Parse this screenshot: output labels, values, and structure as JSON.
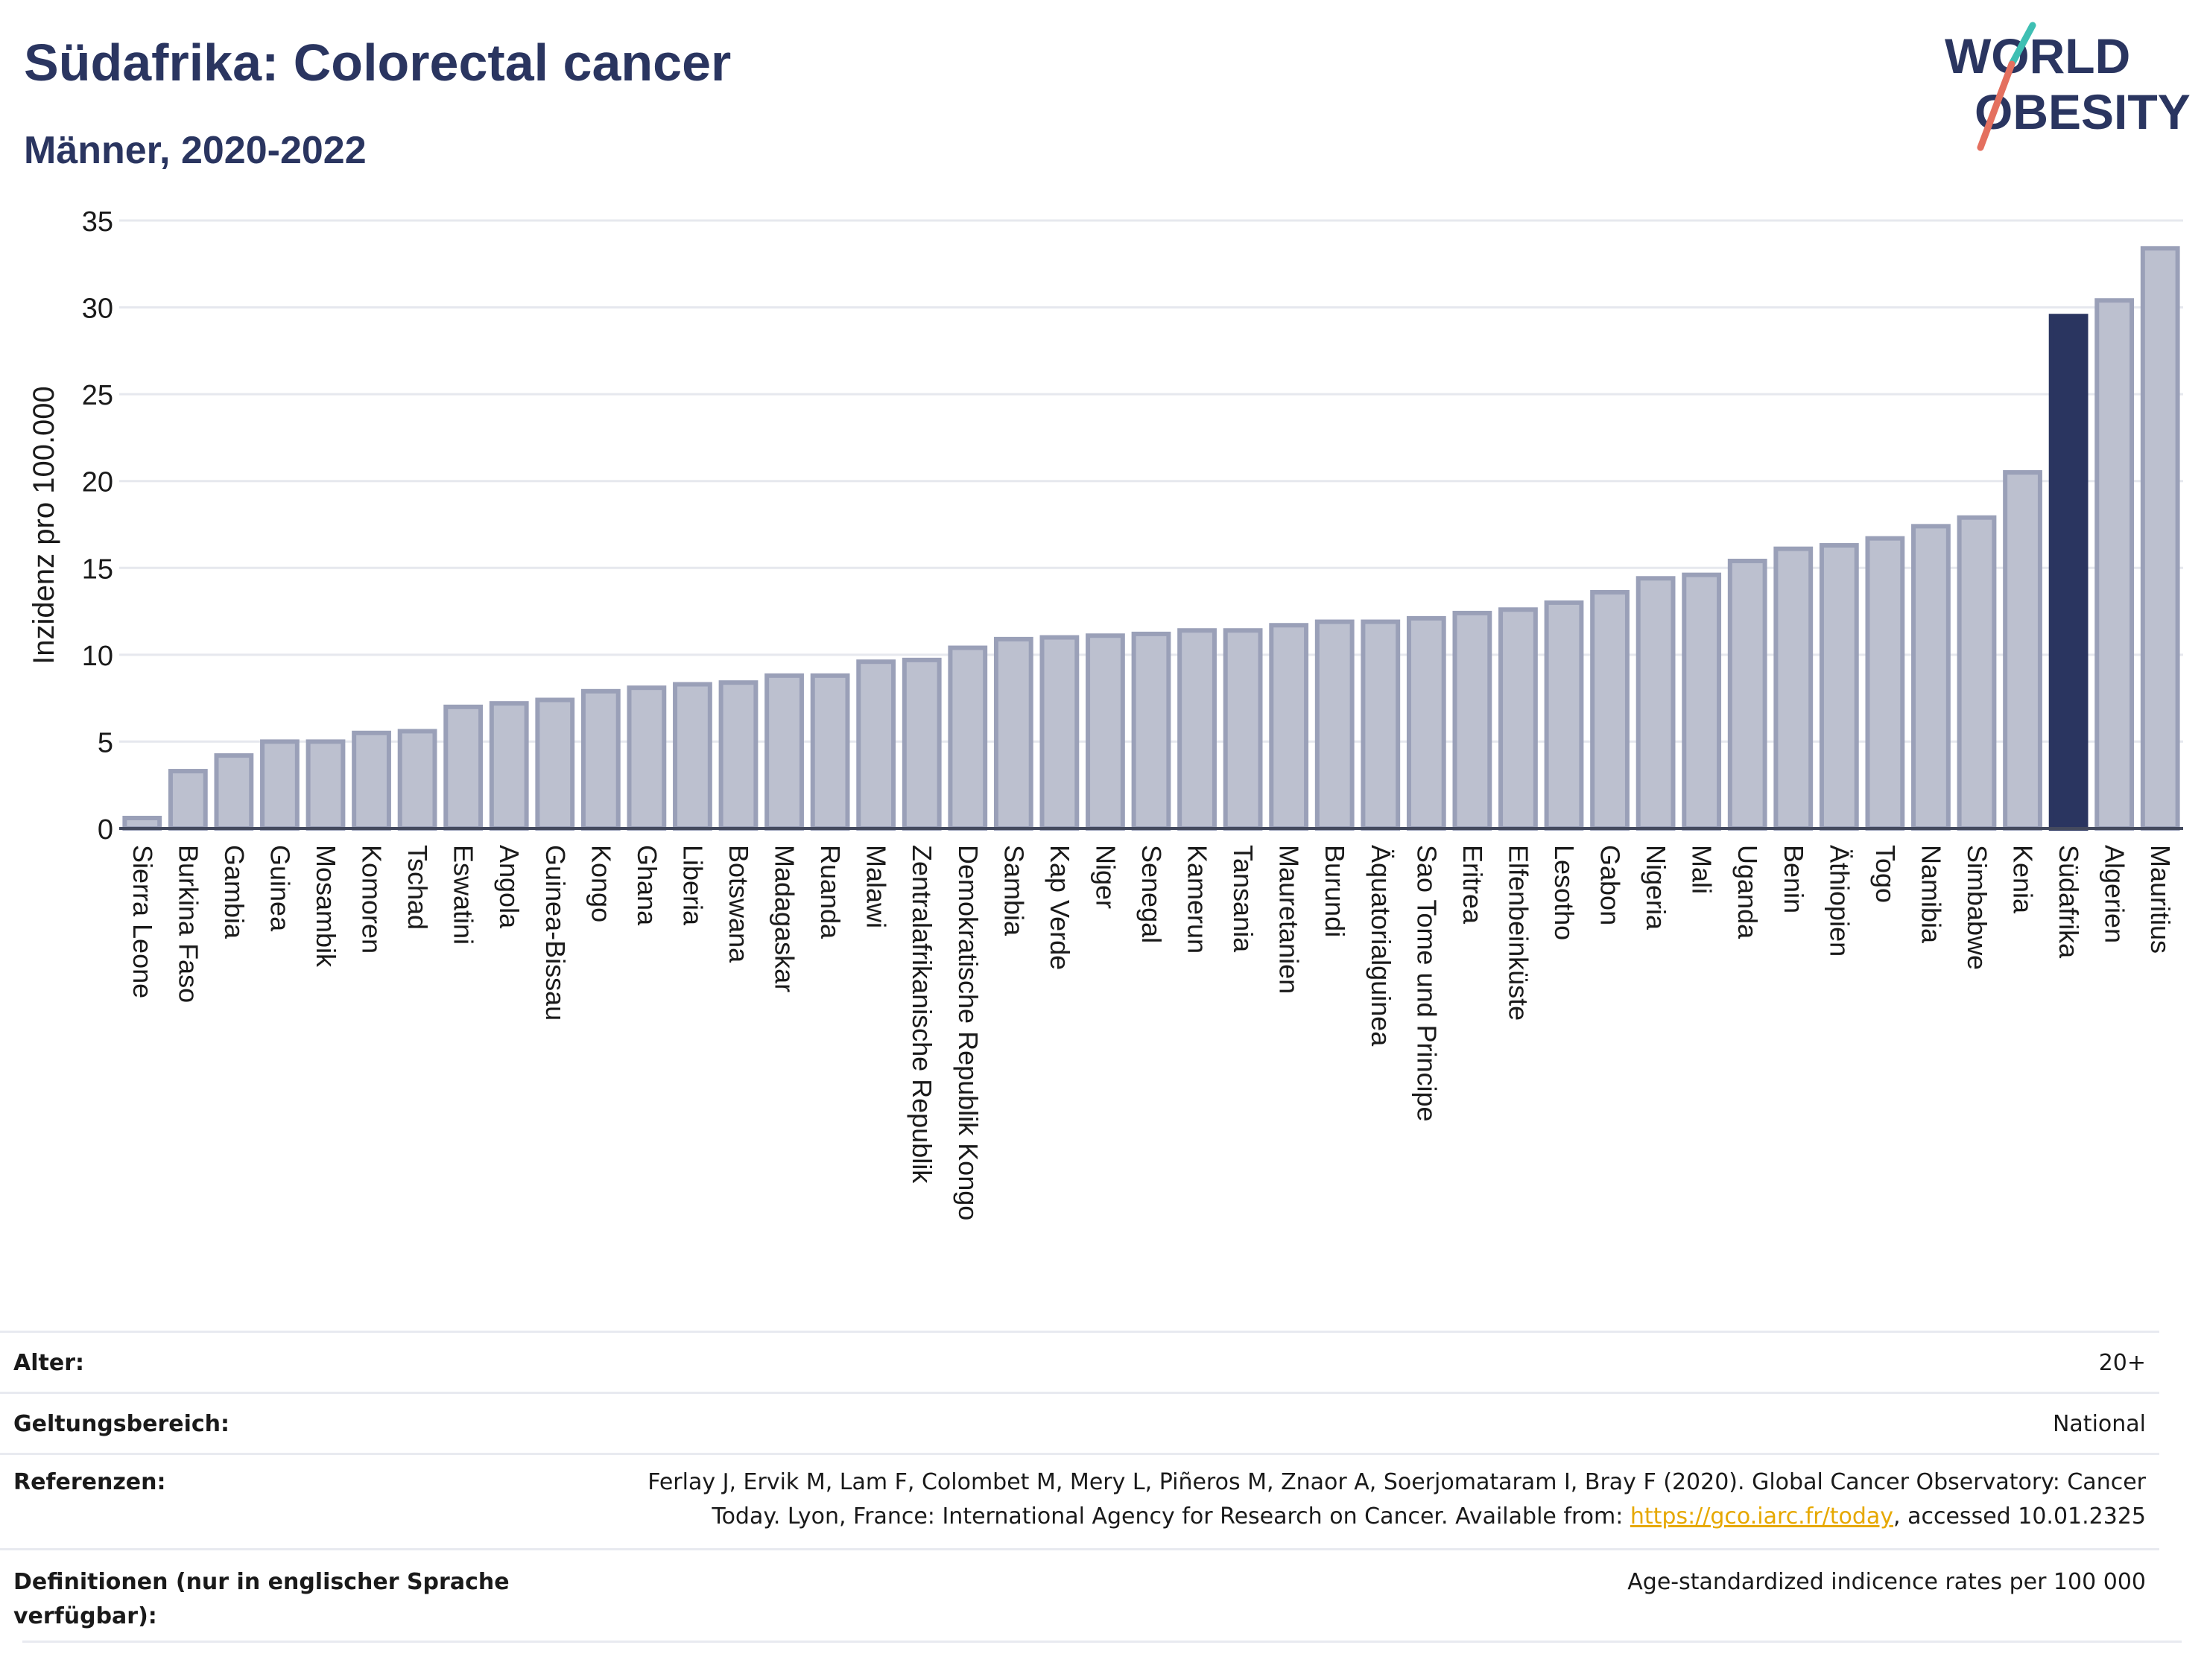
{
  "header": {
    "title": "Südafrika: Colorectal cancer",
    "subtitle": "Männer, 2020-2022"
  },
  "logo": {
    "line1": "WORLD",
    "line2": "OBESITY"
  },
  "colors": {
    "default_bar": "#bcc0cf",
    "default_bar_edge": "#9aa0b8",
    "highlight_bar": "#2a3560",
    "link": "#e6a800",
    "title": "#2a3560"
  },
  "chart_data": {
    "type": "bar",
    "ylabel": "Inzidenz pro 100.000",
    "ylim": [
      0,
      35
    ],
    "yticks": [
      0,
      5,
      10,
      15,
      20,
      25,
      30,
      35
    ],
    "grid": true,
    "highlight": "Südafrika",
    "categories": [
      "Sierra Leone",
      "Burkina Faso",
      "Gambia",
      "Guinea",
      "Mosambik",
      "Komoren",
      "Tschad",
      "Eswatini",
      "Angola",
      "Guinea-Bissau",
      "Kongo",
      "Ghana",
      "Liberia",
      "Botswana",
      "Madagaskar",
      "Ruanda",
      "Malawi",
      "Zentralafrikanische Republik",
      "Demokratische Republik Kongo",
      "Sambia",
      "Kap Verde",
      "Niger",
      "Senegal",
      "Kamerun",
      "Tansania",
      "Mauretanien",
      "Burundi",
      "Äquatorialguinea",
      "Sao Tome und Principe",
      "Eritrea",
      "Elfenbeinküste",
      "Lesotho",
      "Gabon",
      "Nigeria",
      "Mali",
      "Uganda",
      "Benin",
      "Äthiopien",
      "Togo",
      "Namibia",
      "Simbabwe",
      "Kenia",
      "Südafrika",
      "Algerien",
      "Mauritius"
    ],
    "values": [
      0.6,
      3.3,
      4.2,
      5.0,
      5.0,
      5.5,
      5.6,
      7.0,
      7.2,
      7.4,
      7.9,
      8.1,
      8.3,
      8.4,
      8.8,
      8.8,
      9.6,
      9.7,
      10.4,
      10.9,
      11.0,
      11.1,
      11.2,
      11.4,
      11.4,
      11.7,
      11.9,
      11.9,
      12.1,
      12.4,
      12.6,
      13.0,
      13.6,
      14.4,
      14.6,
      15.4,
      16.1,
      16.3,
      16.7,
      17.4,
      17.9,
      20.5,
      29.5,
      30.4,
      33.4
    ]
  },
  "meta": {
    "age_label": "Alter:",
    "age_value": "20+",
    "scope_label": "Geltungsbereich:",
    "scope_value": "National",
    "ref_label": "Referenzen:",
    "ref_line1": "Ferlay J, Ervik M, Lam F, Colombet M, Mery L, Piñeros M, Znaor A, Soerjomataram I, Bray F (2020). Global Cancer Observatory: Cancer",
    "ref_line2_pre": "Today. Lyon, France: International Agency for Research on Cancer. Available from: ",
    "ref_link": "https://gco.iarc.fr/today",
    "ref_line2_post": ", accessed 10.01.2325",
    "def_label": "Definitionen (nur in englischer Sprache verfügbar):",
    "def_value": "Age-standardized indicence rates per 100 000"
  }
}
